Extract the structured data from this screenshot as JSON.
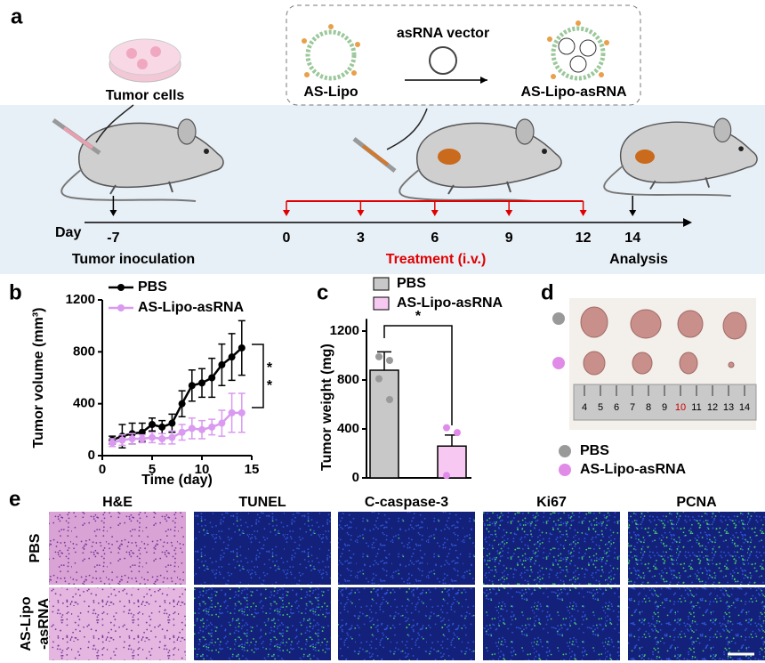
{
  "panel_labels": [
    "a",
    "b",
    "c",
    "d",
    "e"
  ],
  "schematic": {
    "tumor_cells": "Tumor cells",
    "carrier": "AS-Lipo",
    "cargo": "asRNA vector",
    "product": "AS-Lipo-asRNA",
    "axis_label": "Day",
    "days": [
      -7,
      0,
      3,
      6,
      9,
      12,
      14
    ],
    "phases": [
      "Tumor inoculation",
      "Treatment (i.v.)",
      "Analysis"
    ]
  },
  "chart_data": [
    {
      "type": "line",
      "xlabel": "Time (day)",
      "ylabel": "Tumor volume (mm³)",
      "x": [
        1,
        2,
        3,
        4,
        5,
        6,
        7,
        8,
        9,
        10,
        11,
        12,
        13,
        14
      ],
      "series": [
        {
          "name": "PBS",
          "color": "#000000",
          "values": [
            120,
            150,
            170,
            180,
            240,
            220,
            250,
            400,
            540,
            560,
            600,
            700,
            760,
            830
          ],
          "errors": [
            30,
            90,
            80,
            70,
            50,
            50,
            70,
            100,
            120,
            110,
            150,
            160,
            180,
            210
          ]
        },
        {
          "name": "AS-Lipo-asRNA",
          "color": "#d99af0",
          "values": [
            100,
            120,
            130,
            130,
            140,
            130,
            140,
            180,
            210,
            200,
            220,
            250,
            330,
            330
          ],
          "errors": [
            30,
            40,
            40,
            30,
            40,
            40,
            50,
            60,
            80,
            70,
            60,
            100,
            150,
            150
          ]
        }
      ],
      "xlim": [
        0,
        15
      ],
      "xticks": [
        0,
        5,
        10,
        15
      ],
      "ylim": [
        0,
        1200
      ],
      "yticks": [
        0,
        400,
        800,
        1200
      ],
      "annotations": [
        "*",
        "*"
      ]
    },
    {
      "type": "bar",
      "ylabel": "Tumor weight (mg)",
      "series": [
        {
          "name": "PBS",
          "color": "#c8c8c8",
          "point_color": "#999999",
          "values": [
            880
          ],
          "errors": [
            150
          ],
          "points": [
            990,
            960,
            810,
            640
          ]
        },
        {
          "name": "AS-Lipo-asRNA",
          "color": "#f7c9f2",
          "point_color": "#e08be8",
          "values": [
            260
          ],
          "errors": [
            90
          ],
          "points": [
            410,
            370,
            20
          ]
        }
      ],
      "ylim": [
        0,
        1300
      ],
      "yticks": [
        0,
        400,
        800,
        1200
      ],
      "annotations": [
        "*"
      ]
    }
  ],
  "photo": {
    "legend": [
      "PBS",
      "AS-Lipo-asRNA"
    ],
    "ruler": [
      4,
      5,
      6,
      7,
      8,
      9,
      10,
      11,
      12,
      13,
      14
    ]
  },
  "histology": {
    "columns": [
      "H&E",
      "TUNEL",
      "C-caspase-3",
      "Ki67",
      "PCNA"
    ],
    "rows": [
      [
        "PBS"
      ],
      [
        "AS-Lipo",
        "-asRNA"
      ]
    ]
  }
}
